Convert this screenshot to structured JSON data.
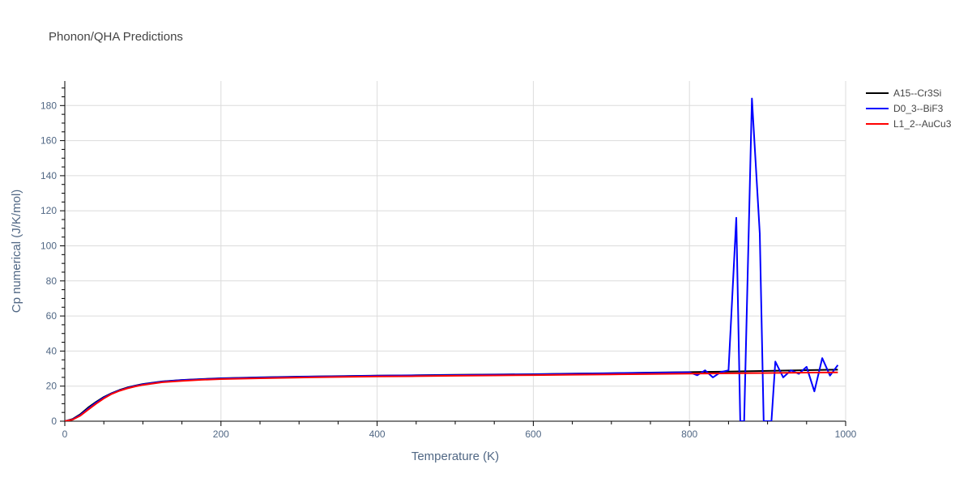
{
  "chart_data": {
    "type": "line",
    "title": "Phonon/QHA Predictions",
    "xlabel": "Temperature (K)",
    "ylabel": "Cp numerical (J/K/mol)",
    "xlim": [
      0,
      1000
    ],
    "ylim": [
      0,
      194
    ],
    "xticks": [
      0,
      200,
      400,
      600,
      800,
      1000
    ],
    "yticks": [
      0,
      20,
      40,
      60,
      80,
      100,
      120,
      140,
      160,
      180
    ],
    "grid": true,
    "legend_position": "top-right",
    "series": [
      {
        "name": "A15--Cr3Si",
        "color": "#000000",
        "x": [
          0,
          10,
          20,
          30,
          40,
          50,
          60,
          70,
          80,
          90,
          100,
          125,
          150,
          175,
          200,
          250,
          300,
          350,
          400,
          450,
          500,
          550,
          600,
          650,
          700,
          750,
          800,
          850,
          900,
          950,
          990
        ],
        "y": [
          0,
          1.2,
          4,
          7.8,
          11,
          13.8,
          16,
          17.8,
          19.2,
          20.3,
          21.2,
          22.7,
          23.5,
          24,
          24.5,
          25,
          25.4,
          25.7,
          26,
          26.2,
          26.4,
          26.6,
          26.8,
          27.1,
          27.4,
          27.7,
          28,
          28.3,
          28.7,
          29.1,
          29.4
        ]
      },
      {
        "name": "D0_3--BiF3",
        "color": "#0000ff",
        "x": [
          0,
          10,
          20,
          30,
          40,
          50,
          60,
          70,
          80,
          90,
          100,
          125,
          150,
          175,
          200,
          250,
          300,
          350,
          400,
          450,
          500,
          550,
          600,
          650,
          700,
          750,
          800,
          810,
          820,
          830,
          840,
          850,
          860,
          865,
          870,
          880,
          890,
          895,
          905,
          910,
          920,
          930,
          940,
          950,
          960,
          970,
          980,
          990
        ],
        "y": [
          0,
          1,
          3.6,
          7.2,
          10.6,
          13.5,
          15.8,
          17.6,
          19,
          20.1,
          21,
          22.6,
          23.4,
          23.9,
          24.4,
          24.9,
          25.3,
          25.6,
          25.9,
          26.1,
          26.3,
          26.5,
          26.7,
          27,
          27.3,
          27.6,
          27.9,
          26.2,
          29,
          25,
          28,
          29,
          116,
          0,
          0,
          184,
          107,
          0,
          0,
          34,
          25,
          29,
          27,
          31,
          17,
          36,
          26,
          32
        ]
      },
      {
        "name": "L1_2--AuCu3",
        "color": "#ff0000",
        "x": [
          0,
          10,
          20,
          30,
          40,
          50,
          60,
          70,
          80,
          90,
          100,
          125,
          150,
          175,
          200,
          250,
          300,
          350,
          400,
          450,
          500,
          550,
          600,
          650,
          700,
          750,
          800,
          850,
          900,
          950,
          990
        ],
        "y": [
          0,
          0.9,
          3.2,
          6.6,
          10,
          13,
          15.5,
          17.3,
          18.7,
          19.8,
          20.7,
          22.2,
          23,
          23.6,
          24,
          24.5,
          24.9,
          25.2,
          25.5,
          25.7,
          25.9,
          26.1,
          26.3,
          26.5,
          26.7,
          26.9,
          27.1,
          27.3,
          27.5,
          27.7,
          27.8
        ]
      }
    ]
  }
}
